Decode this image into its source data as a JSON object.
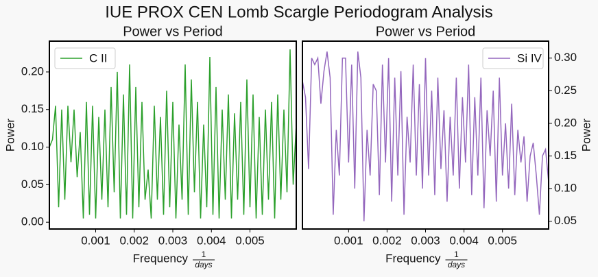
{
  "title": "IUE PROX CEN Lomb Scargle Periodogram Analysis",
  "chart_data": [
    {
      "type": "line",
      "title": "Power vs Period",
      "xlabel": "Frequency",
      "xlabel_fraction": {
        "numerator": "1",
        "denominator": "days"
      },
      "ylabel": "Power",
      "y_axis_side": "left",
      "legend": "upper left",
      "x": [
        -0.0002,
        -0.00012,
        -4e-05,
        4e-05,
        0.00012,
        0.0002,
        0.00028,
        0.00036,
        0.00044,
        0.00052,
        0.0006,
        0.00068,
        0.00076,
        0.00084,
        0.00092,
        0.001,
        0.00108,
        0.00116,
        0.00124,
        0.00132,
        0.0014,
        0.00148,
        0.00156,
        0.00164,
        0.00172,
        0.0018,
        0.00188,
        0.00196,
        0.00204,
        0.00212,
        0.0022,
        0.00228,
        0.00236,
        0.00244,
        0.00252,
        0.0026,
        0.00268,
        0.00276,
        0.00284,
        0.00292,
        0.003,
        0.00308,
        0.00316,
        0.00324,
        0.00332,
        0.0034,
        0.00348,
        0.00356,
        0.00364,
        0.00372,
        0.0038,
        0.00388,
        0.00396,
        0.00404,
        0.00412,
        0.0042,
        0.00428,
        0.00436,
        0.00444,
        0.00452,
        0.0046,
        0.00468,
        0.00476,
        0.00484,
        0.00492,
        0.005,
        0.00508,
        0.00516,
        0.00524,
        0.00532,
        0.0054,
        0.00548,
        0.00556,
        0.00564,
        0.00572,
        0.0058,
        0.00588,
        0.00596,
        0.00604,
        0.00612,
        0.0062
      ],
      "series": [
        {
          "name": "C II",
          "color": "#2ca02c",
          "values": [
            0.1,
            0.11,
            0.155,
            0.02,
            0.15,
            0.03,
            0.155,
            0.08,
            0.15,
            0.06,
            0.12,
            0.005,
            0.16,
            0.01,
            0.155,
            0.005,
            0.14,
            0.03,
            0.15,
            0.02,
            0.18,
            0.04,
            0.2,
            0.005,
            0.17,
            0.01,
            0.21,
            0.005,
            0.18,
            0.02,
            0.16,
            0.03,
            0.07,
            0.005,
            0.155,
            0.03,
            0.14,
            0.01,
            0.175,
            0.02,
            0.16,
            0.005,
            0.13,
            0.03,
            0.21,
            0.01,
            0.19,
            0.04,
            0.16,
            0.005,
            0.13,
            0.02,
            0.22,
            0.01,
            0.18,
            0.005,
            0.15,
            0.03,
            0.17,
            0.005,
            0.145,
            0.03,
            0.16,
            0.01,
            0.19,
            0.02,
            0.17,
            0.005,
            0.14,
            0.01,
            0.15,
            0.03,
            0.16,
            0.005,
            0.17,
            0.03,
            0.15,
            0.04,
            0.23,
            0.05,
            0.13
          ]
        }
      ],
      "xlim": [
        -0.0002,
        0.0062
      ],
      "xticks": [
        0.001,
        0.002,
        0.003,
        0.004,
        0.005
      ],
      "ylim": [
        -0.009,
        0.241
      ],
      "yticks": [
        {
          "value": 0,
          "label": "0.00"
        },
        0.05,
        {
          "value": 0.1,
          "label": "0.10"
        },
        0.15,
        {
          "value": 0.2,
          "label": "0.20"
        }
      ]
    },
    {
      "type": "line",
      "title": "Power vs Period",
      "xlabel": "Frequency",
      "xlabel_fraction": {
        "numerator": "1",
        "denominator": "days"
      },
      "ylabel": "Power",
      "y_axis_side": "right",
      "legend": "upper right",
      "x": [
        -0.0002,
        -0.00012,
        -4e-05,
        4e-05,
        0.00012,
        0.0002,
        0.00028,
        0.00036,
        0.00044,
        0.00052,
        0.0006,
        0.00068,
        0.00076,
        0.00084,
        0.00092,
        0.001,
        0.00108,
        0.00116,
        0.00124,
        0.00132,
        0.0014,
        0.00148,
        0.00156,
        0.00164,
        0.00172,
        0.0018,
        0.00188,
        0.00196,
        0.00204,
        0.00212,
        0.0022,
        0.00228,
        0.00236,
        0.00244,
        0.00252,
        0.0026,
        0.00268,
        0.00276,
        0.00284,
        0.00292,
        0.003,
        0.00308,
        0.00316,
        0.00324,
        0.00332,
        0.0034,
        0.00348,
        0.00356,
        0.00364,
        0.00372,
        0.0038,
        0.00388,
        0.00396,
        0.00404,
        0.00412,
        0.0042,
        0.00428,
        0.00436,
        0.00444,
        0.00452,
        0.0046,
        0.00468,
        0.00476,
        0.00484,
        0.00492,
        0.005,
        0.00508,
        0.00516,
        0.00524,
        0.00532,
        0.0054,
        0.00548,
        0.00556,
        0.00564,
        0.00572,
        0.0058,
        0.00588,
        0.00596,
        0.00604,
        0.00612,
        0.0062
      ],
      "series": [
        {
          "name": "Si IV",
          "color": "#9467bd",
          "values": [
            0.265,
            0.24,
            0.13,
            0.3,
            0.29,
            0.3,
            0.23,
            0.28,
            0.31,
            0.27,
            0.06,
            0.19,
            0.12,
            0.3,
            0.3,
            0.14,
            0.29,
            0.1,
            0.31,
            0.27,
            0.05,
            0.19,
            0.12,
            0.26,
            0.25,
            0.09,
            0.29,
            0.14,
            0.3,
            0.08,
            0.27,
            0.12,
            0.28,
            0.06,
            0.21,
            0.14,
            0.29,
            0.12,
            0.26,
            0.1,
            0.3,
            0.12,
            0.25,
            0.09,
            0.27,
            0.13,
            0.22,
            0.08,
            0.21,
            0.12,
            0.27,
            0.1,
            0.24,
            0.14,
            0.29,
            0.09,
            0.24,
            0.12,
            0.27,
            0.07,
            0.22,
            0.15,
            0.25,
            0.08,
            0.27,
            0.12,
            0.2,
            0.1,
            0.23,
            0.09,
            0.19,
            0.14,
            0.18,
            0.08,
            0.15,
            0.17,
            0.12,
            0.06,
            0.15,
            0.16,
            0.11
          ]
        }
      ],
      "xlim": [
        -0.0002,
        0.0062
      ],
      "xticks": [
        0.001,
        0.002,
        0.003,
        0.004,
        0.005
      ],
      "ylim": [
        0.038,
        0.326
      ],
      "yticks": [
        0.05,
        {
          "value": 0.1,
          "label": "0.10"
        },
        0.15,
        {
          "value": 0.2,
          "label": "0.20"
        },
        0.25,
        {
          "value": 0.3,
          "label": "0.30"
        }
      ]
    }
  ]
}
